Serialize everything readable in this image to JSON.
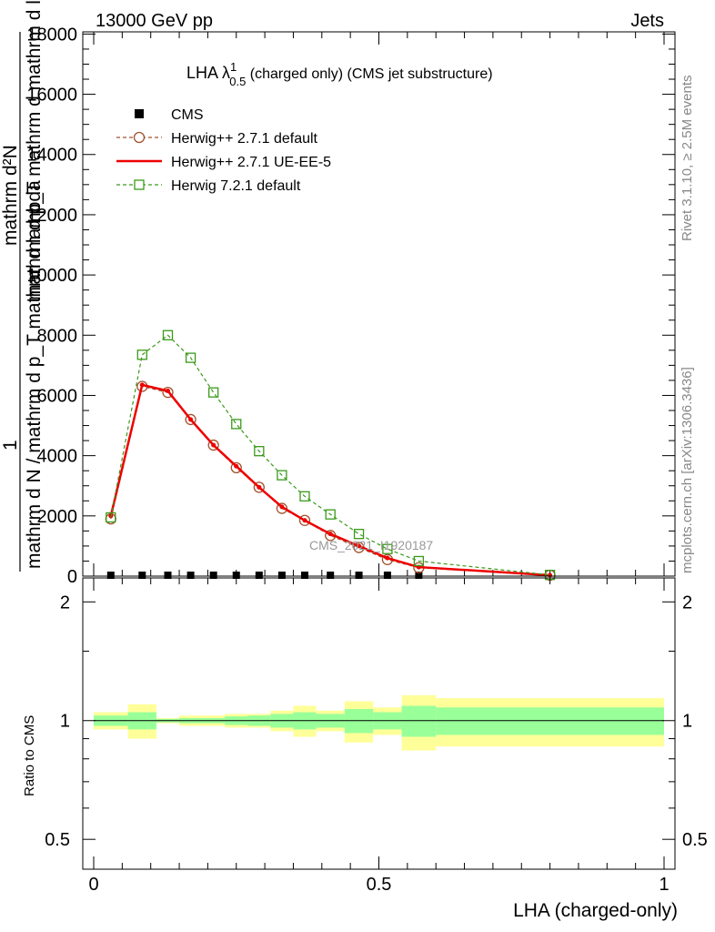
{
  "header": {
    "left": "13000 GeV pp",
    "right": "Jets"
  },
  "title": {
    "main": "LHA λ",
    "sup": "1",
    "sub": "0.5",
    "rest": " (charged only) (CMS jet substructure)"
  },
  "side_labels": {
    "rivet": "Rivet 3.1.10, ≥ 2.5M events",
    "mcplots": "mcplots.cern.ch [arXiv:1306.3436]"
  },
  "watermark": "CMS_2021_I1920187",
  "ylabel_top": {
    "numer": "mathrm d²N",
    "denom": "mathrm d p_T mathrm d mathrm d lambda",
    "one": "1",
    "denom2": "mathrm d N / mathrm d p_T mathrm d lambda"
  },
  "ylabel_bottom": "Ratio to CMS",
  "xlabel": "LHA (charged-only)",
  "colors": {
    "cms": "#000000",
    "herwigpp_default": "#a0522d",
    "herwigpp_ueee5": "#ee0000",
    "herwig721": "#3a9a1a",
    "band_inner": "#99ff99",
    "band_outer": "#ffff99"
  },
  "legend": [
    {
      "label": "CMS"
    },
    {
      "label": "Herwig++ 2.7.1 default"
    },
    {
      "label": "Herwig++ 2.7.1 UE-EE-5"
    },
    {
      "label": "Herwig 7.2.1 default"
    }
  ],
  "chart_data": {
    "type": "line",
    "title": "LHA λ^1_0.5 (charged only) (CMS jet substructure)",
    "xlabel": "LHA (charged-only)",
    "xlim": [
      -0.02,
      1.02
    ],
    "upper": {
      "ylim": [
        0,
        18000
      ],
      "yticks": [
        0,
        2000,
        4000,
        6000,
        8000,
        10000,
        12000,
        14000,
        16000,
        18000
      ],
      "series": [
        {
          "name": "CMS",
          "style": "markers",
          "x": [
            0.03,
            0.085,
            0.13,
            0.17,
            0.21,
            0.25,
            0.29,
            0.33,
            0.37,
            0.415,
            0.465,
            0.515,
            0.57
          ],
          "y": [
            30,
            30,
            30,
            30,
            30,
            30,
            30,
            30,
            30,
            30,
            30,
            30,
            30
          ]
        },
        {
          "name": "Herwig++ 2.7.1 default",
          "style": "dashed-circle",
          "x": [
            0.03,
            0.085,
            0.13,
            0.17,
            0.21,
            0.25,
            0.29,
            0.33,
            0.37,
            0.415,
            0.465,
            0.515,
            0.57,
            0.8
          ],
          "y": [
            1900,
            6300,
            6100,
            5200,
            4350,
            3600,
            2950,
            2250,
            1850,
            1350,
            950,
            550,
            280,
            30
          ]
        },
        {
          "name": "Herwig++ 2.7.1 UE-EE-5",
          "style": "solid",
          "x": [
            0.03,
            0.085,
            0.13,
            0.17,
            0.21,
            0.25,
            0.29,
            0.33,
            0.37,
            0.415,
            0.465,
            0.515,
            0.57,
            0.8
          ],
          "y": [
            2000,
            6350,
            6150,
            5200,
            4350,
            3650,
            2950,
            2300,
            1850,
            1400,
            1000,
            600,
            300,
            30
          ]
        },
        {
          "name": "Herwig 7.2.1 default",
          "style": "dashed-square",
          "x": [
            0.03,
            0.085,
            0.13,
            0.17,
            0.21,
            0.25,
            0.29,
            0.33,
            0.37,
            0.415,
            0.465,
            0.515,
            0.57,
            0.8
          ],
          "y": [
            1950,
            7350,
            8000,
            7250,
            6100,
            5050,
            4150,
            3350,
            2650,
            2050,
            1400,
            900,
            500,
            40
          ]
        }
      ]
    },
    "ratio": {
      "ylim": [
        0.42,
        2.3
      ],
      "yticks": [
        0.5,
        1,
        2
      ],
      "reference": 1,
      "bins": [
        {
          "lo": 0.0,
          "hi": 0.06,
          "inner": 0.03,
          "outer": 0.05
        },
        {
          "lo": 0.06,
          "hi": 0.11,
          "inner": 0.05,
          "outer": 0.1
        },
        {
          "lo": 0.11,
          "hi": 0.15,
          "inner": 0.01,
          "outer": 0.015
        },
        {
          "lo": 0.15,
          "hi": 0.19,
          "inner": 0.015,
          "outer": 0.03
        },
        {
          "lo": 0.19,
          "hi": 0.23,
          "inner": 0.015,
          "outer": 0.03
        },
        {
          "lo": 0.23,
          "hi": 0.27,
          "inner": 0.025,
          "outer": 0.04
        },
        {
          "lo": 0.27,
          "hi": 0.31,
          "inner": 0.03,
          "outer": 0.04
        },
        {
          "lo": 0.31,
          "hi": 0.35,
          "inner": 0.04,
          "outer": 0.06
        },
        {
          "lo": 0.35,
          "hi": 0.39,
          "inner": 0.05,
          "outer": 0.09
        },
        {
          "lo": 0.39,
          "hi": 0.44,
          "inner": 0.04,
          "outer": 0.06
        },
        {
          "lo": 0.44,
          "hi": 0.49,
          "inner": 0.07,
          "outer": 0.12
        },
        {
          "lo": 0.49,
          "hi": 0.54,
          "inner": 0.05,
          "outer": 0.08
        },
        {
          "lo": 0.54,
          "hi": 0.6,
          "inner": 0.09,
          "outer": 0.16
        },
        {
          "lo": 0.6,
          "hi": 1.0,
          "inner": 0.08,
          "outer": 0.14
        }
      ]
    },
    "legend_position": "top-left",
    "grid": false
  }
}
